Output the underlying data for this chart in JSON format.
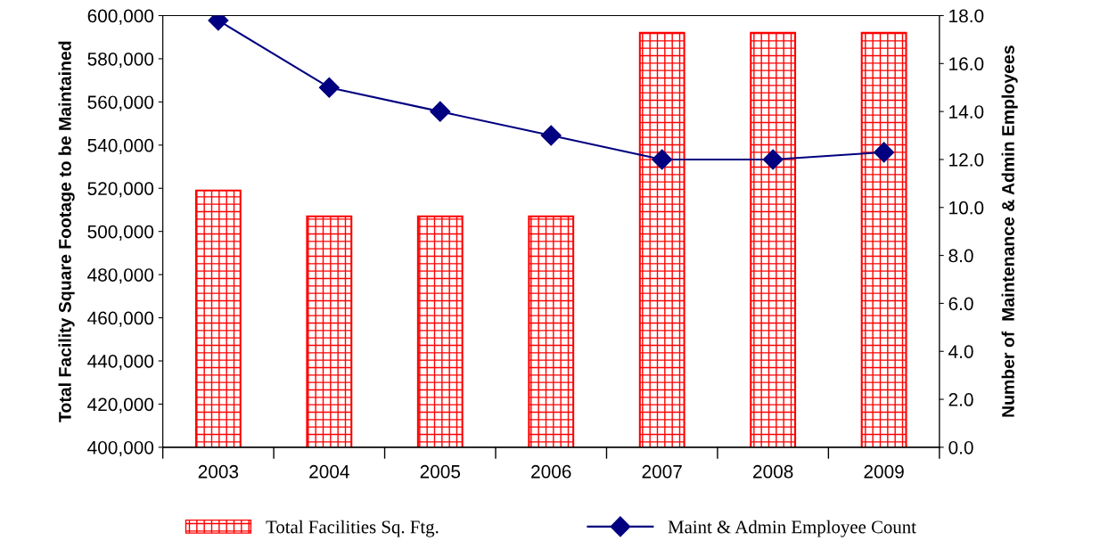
{
  "chart_data": {
    "type": "bar",
    "categories": [
      "2003",
      "2004",
      "2005",
      "2006",
      "2007",
      "2008",
      "2009"
    ],
    "ylabel": "Total Facility Square Footage to be Maintained",
    "y2label": "Number of  Maintenance & Admin Employees",
    "ylim": [
      400000,
      600000
    ],
    "yticks": [
      {
        "value": 400000,
        "label": "400,000"
      },
      {
        "value": 420000,
        "label": "420,000"
      },
      {
        "value": 440000,
        "label": "440,000"
      },
      {
        "value": 460000,
        "label": "460,000"
      },
      {
        "value": 480000,
        "label": "480,000"
      },
      {
        "value": 500000,
        "label": "500,000"
      },
      {
        "value": 520000,
        "label": "520,000"
      },
      {
        "value": 540000,
        "label": "540,000"
      },
      {
        "value": 560000,
        "label": "560,000"
      },
      {
        "value": 580000,
        "label": "580,000"
      },
      {
        "value": 600000,
        "label": "600,000"
      }
    ],
    "y2lim": [
      0,
      18
    ],
    "y2ticks": [
      {
        "value": 0,
        "label": "0.0"
      },
      {
        "value": 2,
        "label": "2.0"
      },
      {
        "value": 4,
        "label": "4.0"
      },
      {
        "value": 6,
        "label": "6.0"
      },
      {
        "value": 8,
        "label": "8.0"
      },
      {
        "value": 10,
        "label": "10.0"
      },
      {
        "value": 12,
        "label": "12.0"
      },
      {
        "value": 14,
        "label": "14.0"
      },
      {
        "value": 16,
        "label": "16.0"
      },
      {
        "value": 18,
        "label": "18.0"
      }
    ],
    "series": [
      {
        "name": "Total Facilities Sq. Ftg.",
        "color": "#ff0000",
        "values": [
          519000,
          507000,
          507000,
          507000,
          592000,
          592000,
          592000
        ]
      },
      {
        "name": "Maint & Admin Employee Count",
        "type": "line",
        "axis": "y2",
        "color": "#000080",
        "marker": "diamond",
        "values": [
          17.8,
          15.0,
          14.0,
          13.0,
          12.0,
          12.0,
          12.3
        ]
      }
    ],
    "grid": false,
    "legend": "bottom"
  }
}
